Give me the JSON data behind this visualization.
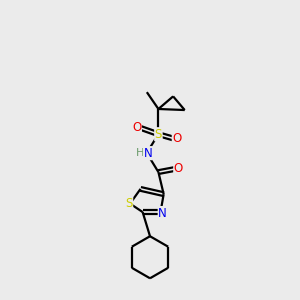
{
  "bg_color": "#ebebeb",
  "atom_colors": {
    "C": "#000000",
    "N": "#0000ee",
    "O": "#ee0000",
    "S": "#cccc00",
    "H": "#6a9a6a"
  },
  "bond_color": "#000000",
  "line_width": 1.6,
  "figsize": [
    3.0,
    3.0
  ],
  "dpi": 100
}
